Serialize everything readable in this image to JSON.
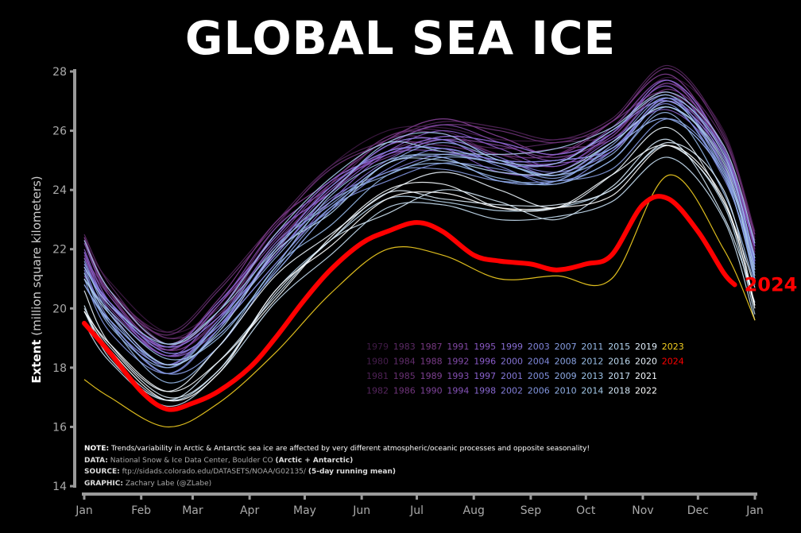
{
  "chart_data": {
    "type": "line",
    "title": "GLOBAL SEA ICE",
    "ylabel_bold": "Extent",
    "ylabel_rest": "(million square kilometers)",
    "ylim": [
      14,
      28
    ],
    "yticks": [
      14,
      16,
      18,
      20,
      22,
      24,
      26,
      28
    ],
    "xlim_days": [
      0,
      365
    ],
    "xtick_labels": [
      "Jan",
      "Feb",
      "Mar",
      "Apr",
      "May",
      "Jun",
      "Jul",
      "Aug",
      "Sep",
      "Oct",
      "Nov",
      "Dec",
      "Jan"
    ],
    "grid": false,
    "legend_placement": "center-right",
    "color_stops": [
      "#3f1a45",
      "#7a3a86",
      "#8a5ccb",
      "#7f8fe0",
      "#9fc8ea",
      "#ffffff"
    ],
    "highlight_colors": {
      "2023": "#f5d020",
      "2024": "#ff0000"
    },
    "end_label": "2024",
    "x_days": [
      0,
      14,
      45,
      73,
      104,
      134,
      165,
      195,
      226,
      257,
      287,
      318,
      348,
      365
    ],
    "series": [
      {
        "name": "1979",
        "values": [
          22.2,
          20.9,
          19.2,
          20.1,
          22.7,
          24.8,
          26.0,
          26.1,
          25.7,
          25.7,
          26.1,
          27.8,
          26.0,
          22.3
        ]
      },
      {
        "name": "1980",
        "values": [
          22.4,
          20.6,
          18.8,
          20.3,
          22.9,
          24.3,
          25.7,
          26.4,
          25.8,
          25.2,
          26.3,
          27.9,
          25.4,
          22.5
        ]
      },
      {
        "name": "1981",
        "values": [
          21.7,
          20.5,
          19.0,
          20.0,
          22.1,
          24.2,
          25.8,
          26.0,
          25.2,
          25.2,
          26.3,
          27.3,
          25.4,
          21.9
        ]
      },
      {
        "name": "1982",
        "values": [
          22.4,
          20.6,
          19.2,
          20.7,
          22.9,
          24.8,
          25.7,
          26.3,
          26.1,
          25.7,
          26.4,
          28.2,
          25.9,
          22.6
        ]
      },
      {
        "name": "1983",
        "values": [
          22.5,
          20.8,
          18.8,
          19.9,
          22.7,
          24.1,
          25.7,
          25.7,
          25.4,
          25.6,
          25.9,
          27.6,
          25.7,
          22.4
        ]
      },
      {
        "name": "1984",
        "values": [
          21.7,
          20.4,
          18.6,
          19.6,
          22.2,
          24.0,
          25.3,
          25.7,
          25.2,
          24.8,
          25.8,
          27.3,
          24.9,
          21.8
        ]
      },
      {
        "name": "1985",
        "values": [
          21.7,
          20.6,
          19.0,
          19.8,
          22.1,
          24.2,
          25.8,
          25.9,
          25.2,
          25.2,
          26.3,
          27.3,
          25.4,
          21.9
        ]
      },
      {
        "name": "1986",
        "values": [
          22.3,
          20.5,
          19.1,
          20.6,
          22.8,
          24.7,
          25.6,
          26.2,
          26.0,
          25.6,
          26.3,
          28.1,
          25.8,
          22.5
        ]
      },
      {
        "name": "1987",
        "values": [
          22.3,
          20.5,
          18.6,
          19.7,
          22.5,
          23.9,
          25.5,
          25.5,
          25.2,
          25.4,
          25.7,
          27.4,
          25.5,
          22.2
        ]
      },
      {
        "name": "1988",
        "values": [
          22.4,
          20.6,
          18.8,
          20.3,
          22.9,
          24.3,
          25.7,
          26.4,
          25.8,
          25.2,
          26.3,
          27.9,
          25.4,
          22.5
        ]
      },
      {
        "name": "1989",
        "values": [
          21.4,
          20.2,
          18.7,
          19.7,
          21.8,
          23.9,
          25.5,
          25.7,
          24.9,
          24.9,
          26.0,
          27.0,
          25.1,
          21.6
        ]
      },
      {
        "name": "1990",
        "values": [
          21.8,
          20.0,
          18.6,
          20.1,
          22.3,
          24.2,
          25.1,
          25.7,
          25.5,
          25.1,
          25.8,
          27.6,
          25.3,
          22.0
        ]
      },
      {
        "name": "1991",
        "values": [
          21.5,
          20.2,
          18.5,
          19.4,
          22.0,
          24.1,
          25.3,
          25.4,
          25.0,
          25.0,
          25.4,
          27.1,
          25.3,
          21.6
        ]
      },
      {
        "name": "1992",
        "values": [
          22.2,
          20.4,
          18.6,
          20.1,
          22.7,
          24.1,
          25.5,
          26.2,
          25.6,
          25.0,
          26.1,
          27.7,
          25.2,
          22.3
        ]
      },
      {
        "name": "1993",
        "values": [
          21.4,
          20.2,
          18.7,
          19.7,
          21.8,
          23.9,
          25.5,
          25.7,
          24.9,
          24.9,
          26.0,
          27.0,
          25.1,
          21.6
        ]
      },
      {
        "name": "1994",
        "values": [
          21.9,
          20.1,
          18.7,
          20.2,
          22.4,
          24.3,
          25.2,
          25.8,
          25.6,
          25.2,
          25.9,
          27.7,
          25.4,
          22.1
        ]
      },
      {
        "name": "1995",
        "values": [
          21.4,
          20.1,
          18.4,
          19.3,
          21.9,
          24.0,
          25.2,
          25.3,
          24.9,
          24.9,
          25.3,
          27.0,
          25.2,
          21.5
        ]
      },
      {
        "name": "1996",
        "values": [
          22.0,
          20.2,
          18.4,
          19.9,
          22.5,
          23.9,
          25.3,
          26.0,
          25.4,
          24.8,
          25.9,
          27.5,
          25.0,
          22.1
        ]
      },
      {
        "name": "1997",
        "values": [
          21.1,
          19.9,
          18.4,
          19.4,
          21.5,
          23.6,
          25.2,
          25.4,
          24.6,
          24.6,
          25.7,
          26.7,
          24.8,
          21.3
        ]
      },
      {
        "name": "1998",
        "values": [
          21.9,
          20.1,
          18.7,
          20.2,
          22.4,
          24.3,
          25.2,
          25.8,
          25.6,
          25.2,
          25.9,
          27.7,
          25.4,
          22.1
        ]
      },
      {
        "name": "1999",
        "values": [
          21.5,
          20.2,
          18.5,
          19.4,
          22.0,
          24.1,
          25.3,
          25.4,
          25.0,
          25.0,
          25.4,
          27.1,
          25.3,
          21.6
        ]
      },
      {
        "name": "2000",
        "values": [
          21.7,
          19.9,
          18.1,
          19.6,
          22.2,
          23.6,
          25.0,
          25.7,
          25.1,
          24.5,
          25.6,
          27.2,
          24.7,
          21.8
        ]
      },
      {
        "name": "2001",
        "values": [
          21.4,
          20.2,
          18.7,
          19.7,
          21.8,
          23.9,
          25.5,
          25.7,
          24.9,
          24.9,
          26.0,
          27.0,
          25.1,
          21.6
        ]
      },
      {
        "name": "2002",
        "values": [
          21.3,
          19.5,
          18.1,
          19.6,
          21.8,
          23.7,
          24.6,
          25.2,
          25.0,
          24.6,
          25.3,
          27.1,
          24.8,
          21.5
        ]
      },
      {
        "name": "2003",
        "values": [
          21.5,
          20.2,
          18.5,
          19.4,
          22.0,
          24.1,
          25.3,
          25.4,
          25.0,
          25.0,
          25.4,
          27.1,
          25.3,
          21.6
        ]
      },
      {
        "name": "2004",
        "values": [
          21.4,
          19.6,
          17.8,
          19.3,
          21.9,
          23.3,
          24.7,
          25.4,
          24.8,
          24.2,
          25.3,
          26.9,
          24.4,
          21.5
        ]
      },
      {
        "name": "2005",
        "values": [
          20.8,
          19.6,
          18.1,
          19.1,
          21.2,
          23.3,
          24.9,
          25.1,
          24.3,
          24.3,
          25.4,
          26.4,
          24.5,
          21.0
        ]
      },
      {
        "name": "2006",
        "values": [
          21.0,
          19.2,
          17.8,
          19.3,
          21.5,
          23.4,
          24.3,
          24.9,
          24.7,
          24.3,
          25.0,
          26.8,
          24.5,
          21.2
        ]
      },
      {
        "name": "2007",
        "values": [
          20.8,
          19.5,
          17.8,
          18.7,
          21.3,
          23.4,
          24.6,
          24.7,
          24.3,
          24.3,
          24.7,
          26.4,
          24.6,
          20.9
        ]
      },
      {
        "name": "2008",
        "values": [
          21.6,
          19.8,
          18.0,
          19.5,
          22.1,
          23.5,
          24.9,
          25.6,
          25.0,
          24.4,
          25.5,
          27.1,
          24.6,
          21.7
        ]
      },
      {
        "name": "2009",
        "values": [
          20.8,
          19.6,
          18.1,
          19.1,
          21.2,
          23.3,
          24.9,
          25.1,
          24.3,
          24.3,
          25.4,
          26.4,
          24.5,
          21.0
        ]
      },
      {
        "name": "2010",
        "values": [
          21.2,
          19.4,
          18.0,
          19.5,
          21.7,
          23.6,
          24.5,
          25.1,
          24.9,
          24.5,
          25.2,
          27.0,
          24.7,
          21.4
        ]
      },
      {
        "name": "2011",
        "values": [
          21.2,
          19.5,
          17.5,
          18.7,
          21.4,
          22.8,
          24.5,
          24.9,
          24.4,
          24.2,
          25.0,
          26.6,
          23.9,
          20.8
        ]
      },
      {
        "name": "2012",
        "values": [
          21.0,
          19.9,
          18.3,
          19.0,
          21.4,
          23.8,
          25.0,
          25.2,
          24.9,
          24.5,
          25.6,
          26.8,
          25.0,
          21.3
        ]
      },
      {
        "name": "2013",
        "values": [
          21.4,
          20.1,
          18.8,
          19.9,
          22.0,
          23.9,
          25.6,
          25.9,
          25.0,
          24.9,
          26.0,
          27.2,
          25.2,
          21.7
        ]
      },
      {
        "name": "2014",
        "values": [
          22.3,
          20.6,
          18.8,
          19.9,
          22.5,
          24.4,
          25.6,
          25.3,
          25.2,
          25.4,
          26.1,
          27.3,
          25.5,
          22.2
        ]
      },
      {
        "name": "2015",
        "values": [
          21.0,
          19.8,
          18.1,
          19.2,
          21.9,
          23.2,
          24.9,
          25.0,
          24.6,
          24.6,
          25.6,
          26.8,
          24.9,
          21.1
        ]
      },
      {
        "name": "2016",
        "values": [
          19.9,
          18.4,
          16.9,
          17.9,
          20.6,
          22.3,
          23.7,
          23.6,
          23.3,
          23.4,
          24.0,
          25.5,
          23.5,
          19.8
        ]
      },
      {
        "name": "2017",
        "values": [
          19.5,
          18.2,
          16.7,
          17.8,
          20.2,
          21.8,
          23.4,
          23.5,
          23.0,
          23.1,
          23.6,
          25.1,
          23.0,
          19.6
        ]
      },
      {
        "name": "2018",
        "values": [
          20.1,
          18.3,
          16.9,
          18.2,
          20.4,
          22.3,
          23.2,
          24.0,
          23.6,
          23.0,
          24.1,
          25.7,
          23.1,
          20.2
        ]
      },
      {
        "name": "2019",
        "values": [
          20.0,
          18.7,
          17.0,
          17.9,
          20.5,
          22.3,
          23.9,
          23.7,
          23.5,
          23.5,
          24.0,
          25.6,
          24.0,
          20.1
        ]
      },
      {
        "name": "2020",
        "values": [
          20.6,
          18.8,
          17.2,
          18.7,
          21.1,
          22.5,
          23.9,
          24.6,
          24.0,
          23.4,
          24.5,
          26.1,
          23.6,
          20.7
        ]
      },
      {
        "name": "2021",
        "values": [
          19.9,
          18.8,
          17.2,
          18.2,
          20.3,
          22.4,
          24.0,
          24.2,
          23.4,
          23.4,
          24.5,
          25.5,
          23.6,
          20.1
        ]
      },
      {
        "name": "2022",
        "values": [
          19.9,
          18.6,
          16.9,
          17.8,
          20.6,
          22.1,
          23.7,
          23.9,
          23.4,
          23.4,
          23.8,
          25.5,
          23.7,
          20.0
        ]
      },
      {
        "name": "2023",
        "values": [
          17.6,
          17.0,
          16.0,
          16.8,
          18.5,
          20.5,
          22.0,
          21.8,
          21.0,
          21.1,
          21.0,
          24.5,
          22.0,
          19.6
        ]
      },
      {
        "name": "2024",
        "x_days": [
          0,
          14,
          31,
          45,
          59,
          73,
          90,
          104,
          120,
          134,
          151,
          165,
          181,
          195,
          212,
          226,
          243,
          257,
          273,
          287,
          304,
          318,
          334,
          348,
          354
        ],
        "values": [
          19.5,
          18.5,
          17.2,
          16.6,
          16.8,
          17.2,
          18.0,
          19.0,
          20.3,
          21.3,
          22.2,
          22.6,
          22.9,
          22.6,
          21.8,
          21.6,
          21.5,
          21.3,
          21.5,
          21.8,
          23.5,
          23.7,
          22.6,
          21.2,
          20.8
        ]
      }
    ]
  },
  "notes": {
    "note_label": "NOTE:",
    "note_text": "Trends/variability in Arctic & Antarctic sea ice are affected by very different atmospheric/oceanic processes and opposite seasonality!",
    "data_label": "DATA:",
    "data_text": "National Snow & Ice Data Center, Boulder CO",
    "data_bold": "(Arctic + Antarctic)",
    "source_label": "SOURCE:",
    "source_text": "ftp://sidads.colorado.edu/DATASETS/NOAA/G02135/",
    "source_bold": "(5-day running mean)",
    "graphic_label": "GRAPHIC:",
    "graphic_text": "Zachary Labe (@ZLabe)"
  }
}
